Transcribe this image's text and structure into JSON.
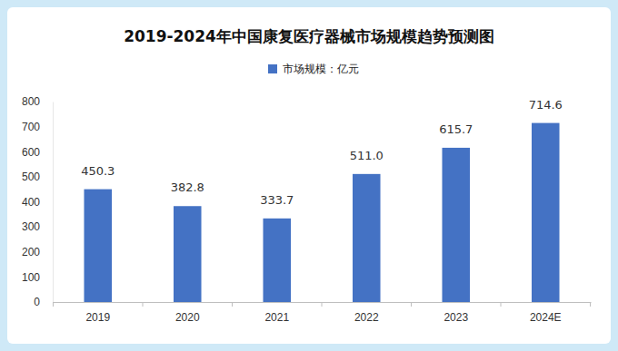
{
  "chart_data": {
    "type": "bar",
    "title": "2019-2024年中国康复医疗器械市场规模趋势预测图",
    "categories": [
      "2019",
      "2020",
      "2021",
      "2022",
      "2023",
      "2024E"
    ],
    "series": [
      {
        "name": "市场规模：亿元",
        "color": "#4472c4",
        "values": [
          450.3,
          382.8,
          333.7,
          511.0,
          615.7,
          714.6
        ],
        "value_labels": [
          "450.3",
          "382.8",
          "333.7",
          "511.0",
          "615.7",
          "714.6"
        ]
      }
    ],
    "ylim": [
      0,
      800
    ],
    "yticks": [
      0,
      100,
      200,
      300,
      400,
      500,
      600,
      700,
      800
    ],
    "grid": false,
    "legend": "top",
    "data_labels": true
  }
}
